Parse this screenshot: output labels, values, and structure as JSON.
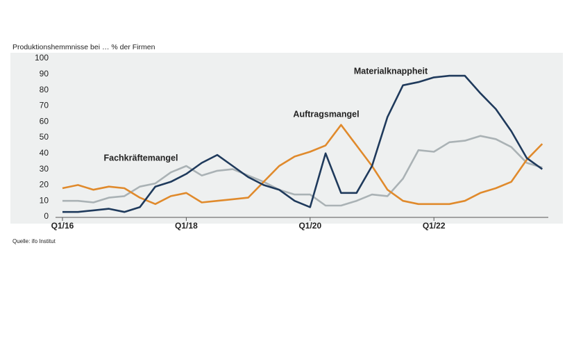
{
  "chart_data": {
    "type": "line",
    "ylabel": "Produktionshemmnisse bei … % der Firmen",
    "note": "Quelle: ifo Institut",
    "categories": [
      "Q1/16",
      null,
      null,
      null,
      null,
      null,
      null,
      null,
      "Q1/18",
      null,
      null,
      null,
      null,
      null,
      null,
      null,
      "Q1/20",
      null,
      null,
      null,
      null,
      null,
      null,
      null,
      "Q1/22",
      null,
      null,
      null,
      null,
      null,
      null,
      null
    ],
    "series": [
      {
        "name": "Materialknappheit",
        "color": "#1f3a5c",
        "values": [
          3,
          3,
          4,
          5,
          3,
          6,
          19,
          22,
          27,
          34,
          39,
          32,
          25,
          20,
          17,
          10,
          6,
          40,
          15,
          15,
          32,
          63,
          83,
          85,
          88,
          89,
          89,
          78,
          68,
          54,
          37,
          30
        ]
      },
      {
        "name": "Auftragsmangel",
        "color": "#e08a2c",
        "values": [
          18,
          20,
          17,
          19,
          18,
          12,
          8,
          13,
          15,
          9,
          10,
          11,
          12,
          22,
          32,
          38,
          41,
          45,
          58,
          45,
          32,
          17,
          10,
          8,
          8,
          8,
          10,
          15,
          18,
          22,
          36,
          46
        ]
      },
      {
        "name": "Fachkräftemangel",
        "color": "#aab2b5",
        "values": [
          10,
          10,
          9,
          12,
          13,
          19,
          21,
          28,
          32,
          26,
          29,
          30,
          26,
          22,
          17,
          14,
          14,
          7,
          7,
          10,
          14,
          13,
          24,
          42,
          41,
          47,
          48,
          51,
          49,
          44,
          34,
          31
        ]
      }
    ],
    "ylim": [
      0,
      100
    ],
    "yticks": [
      0,
      10,
      20,
      30,
      40,
      50,
      60,
      70,
      80,
      90,
      100
    ],
    "grid": false
  }
}
